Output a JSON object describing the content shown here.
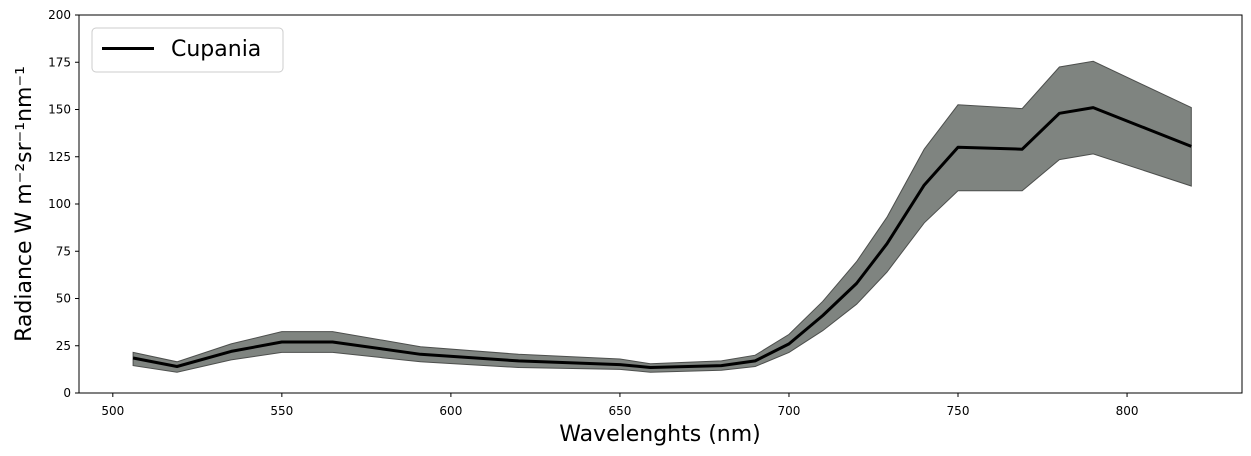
{
  "chart_data": {
    "type": "line",
    "title": "",
    "xlabel": "Wavelenghts (nm)",
    "ylabel": "Radiance W m⁻²sr⁻¹nm⁻¹",
    "xlim": [
      490,
      834
    ],
    "ylim": [
      0,
      200
    ],
    "xticks": [
      500,
      550,
      600,
      650,
      700,
      750,
      800
    ],
    "yticks": [
      0,
      25,
      50,
      75,
      100,
      125,
      150,
      175,
      200
    ],
    "grid": false,
    "legend_position": "top-left",
    "series": [
      {
        "name": "Cupania",
        "color": "#000000",
        "band_color": "#7f8480",
        "x": [
          506,
          519,
          535,
          550,
          565,
          591,
          620,
          650,
          659,
          680,
          690,
          700,
          710,
          720,
          729,
          740,
          750,
          769,
          780,
          790,
          819
        ],
        "y": [
          18.5,
          14,
          22,
          27,
          27,
          20.5,
          17,
          15,
          13.5,
          14.5,
          17,
          26,
          41,
          58,
          79,
          110,
          130,
          129,
          148,
          151,
          130.5
        ],
        "lower": [
          14.5,
          11,
          17.5,
          21.5,
          21.5,
          16.5,
          13.5,
          12.5,
          11,
          12,
          14,
          21.5,
          33,
          47,
          64,
          90,
          107,
          107,
          123.5,
          126.5,
          109.5
        ],
        "upper": [
          21.5,
          16.5,
          26,
          32.5,
          32.5,
          24.5,
          20.5,
          18,
          15.5,
          17,
          20,
          31,
          48.5,
          69.5,
          93,
          129,
          152.5,
          150.5,
          172.5,
          175.5,
          151
        ]
      }
    ]
  }
}
